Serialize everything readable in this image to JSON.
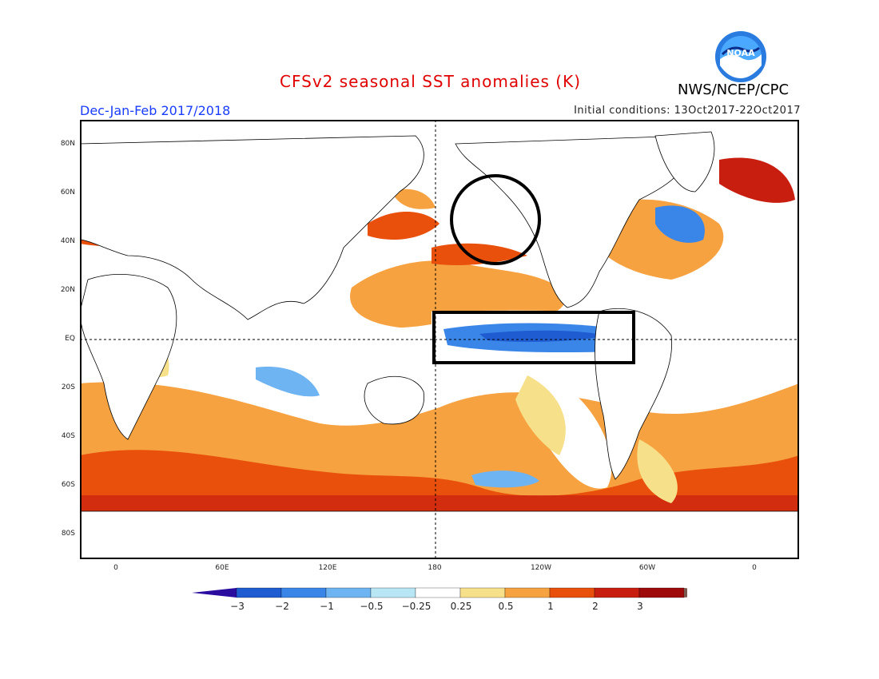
{
  "header": {
    "title": "CFSv2 seasonal SST anomalies (K)",
    "season": "Dec-Jan-Feb 2017/2018",
    "initial_conditions": "Initial conditions: 13Oct2017-22Oct2017",
    "agency": "NWS/NCEP/CPC",
    "logo_text": "NOAA"
  },
  "axes": {
    "lat_labels": [
      "80N",
      "60N",
      "40N",
      "20N",
      "EQ",
      "20S",
      "40S",
      "60S",
      "80S"
    ],
    "lon_labels": [
      "0",
      "60E",
      "120E",
      "180",
      "120W",
      "60W",
      "0"
    ]
  },
  "colorbar": {
    "labels": [
      "−3",
      "−2",
      "−1",
      "−0.5",
      "−0.25",
      "0.25",
      "0.5",
      "1",
      "2",
      "3"
    ],
    "colors": [
      "#2a0c9e",
      "#1f5bd1",
      "#3a86e8",
      "#6fb4f2",
      "#b8e6f5",
      "#ffffff",
      "#f7e08a",
      "#f7a240",
      "#e8500c",
      "#c81e10",
      "#9e0a0a",
      "#7a5a50"
    ]
  },
  "annotations": [
    {
      "shape": "circle",
      "region": "Gulf of Alaska / NE Pacific"
    },
    {
      "shape": "rectangle",
      "region": "Equatorial Eastern Pacific"
    }
  ]
}
